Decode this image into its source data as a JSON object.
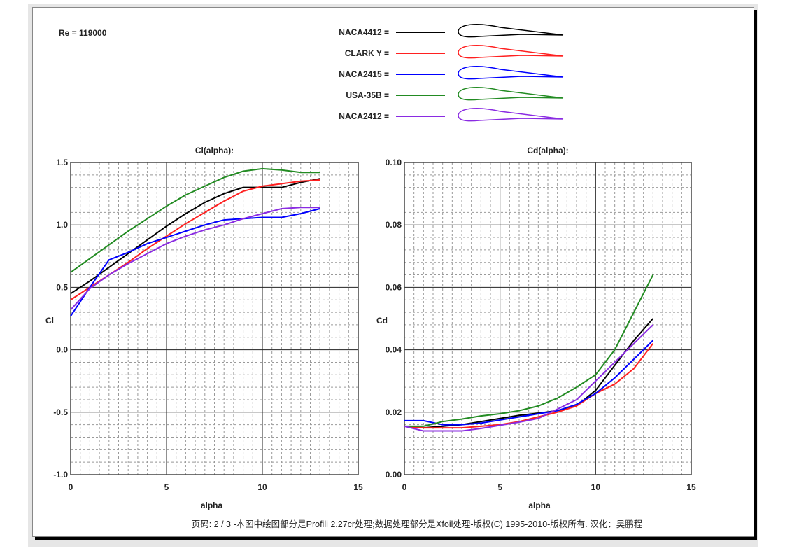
{
  "re_label": "Re = 119000",
  "footer": "页码: 2 / 3 -本图中绘图部分是Profili 2.27cr处理;数据处理部分是Xfoil处理-版权(C) 1995-2010-版权所有. 汉化：吴鹏程",
  "chart_data": [
    {
      "type": "line",
      "title": "Cl(alpha):",
      "xlabel": "alpha",
      "ylabel": "Cl",
      "xlim": [
        0,
        15
      ],
      "ylim": [
        -1.0,
        1.5
      ],
      "xticks": [
        "0",
        "5",
        "10",
        "15"
      ],
      "yticks": [
        "-1.0",
        "-0.5",
        "0.0",
        "0.5",
        "1.0",
        "1.5"
      ],
      "grid": true,
      "x": [
        0,
        1,
        2,
        3,
        4,
        5,
        6,
        7,
        8,
        9,
        10,
        11,
        12,
        13
      ],
      "series": [
        {
          "name": "NACA4412",
          "color": "#000000",
          "values": [
            0.45,
            0.55,
            0.66,
            0.77,
            0.88,
            0.99,
            1.09,
            1.18,
            1.25,
            1.3,
            1.3,
            1.3,
            1.34,
            1.37
          ]
        },
        {
          "name": "CLARK Y",
          "color": "#ff2020",
          "values": [
            0.4,
            0.5,
            0.6,
            0.7,
            0.81,
            0.91,
            1.01,
            1.1,
            1.19,
            1.27,
            1.31,
            1.33,
            1.35,
            1.36
          ]
        },
        {
          "name": "NACA2415",
          "color": "#0000ff",
          "values": [
            0.27,
            0.5,
            0.72,
            0.78,
            0.85,
            0.9,
            0.95,
            1.0,
            1.04,
            1.05,
            1.06,
            1.06,
            1.09,
            1.13
          ]
        },
        {
          "name": "USA-35B",
          "color": "#228b22",
          "values": [
            0.62,
            0.73,
            0.84,
            0.95,
            1.05,
            1.15,
            1.24,
            1.31,
            1.38,
            1.43,
            1.45,
            1.44,
            1.42,
            1.42
          ]
        },
        {
          "name": "NACA2412",
          "color": "#8a2be2",
          "values": [
            0.32,
            0.49,
            0.6,
            0.69,
            0.77,
            0.85,
            0.91,
            0.96,
            1.0,
            1.05,
            1.09,
            1.13,
            1.14,
            1.14
          ]
        }
      ]
    },
    {
      "type": "line",
      "title": "Cd(alpha):",
      "xlabel": "alpha",
      "ylabel": "Cd",
      "xlim": [
        0,
        15
      ],
      "ylim": [
        0,
        0.1
      ],
      "xticks": [
        "0",
        "5",
        "10",
        "15"
      ],
      "yticks": [
        "0.00",
        "0.02",
        "0.04",
        "0.06",
        "0.08",
        "0.10"
      ],
      "grid": true,
      "x": [
        0,
        1,
        2,
        3,
        4,
        5,
        6,
        7,
        8,
        9,
        10,
        11,
        12,
        13
      ],
      "series": [
        {
          "name": "NACA4412",
          "color": "#000000",
          "values": [
            0.0155,
            0.015,
            0.0155,
            0.016,
            0.017,
            0.018,
            0.019,
            0.0197,
            0.0205,
            0.022,
            0.027,
            0.035,
            0.043,
            0.05
          ]
        },
        {
          "name": "CLARK Y",
          "color": "#ff2020",
          "values": [
            0.0155,
            0.015,
            0.015,
            0.015,
            0.0155,
            0.016,
            0.017,
            0.0185,
            0.02,
            0.022,
            0.026,
            0.029,
            0.034,
            0.042
          ]
        },
        {
          "name": "NACA2415",
          "color": "#0000ff",
          "values": [
            0.0173,
            0.0173,
            0.016,
            0.016,
            0.0165,
            0.0175,
            0.0185,
            0.0195,
            0.0205,
            0.0225,
            0.026,
            0.031,
            0.037,
            0.043
          ]
        },
        {
          "name": "USA-35B",
          "color": "#228b22",
          "values": [
            0.0155,
            0.0155,
            0.017,
            0.0178,
            0.0188,
            0.0195,
            0.0205,
            0.022,
            0.0245,
            0.028,
            0.032,
            0.04,
            0.052,
            0.064
          ]
        },
        {
          "name": "NACA2412",
          "color": "#8a2be2",
          "values": [
            0.0155,
            0.014,
            0.014,
            0.014,
            0.0148,
            0.0158,
            0.0168,
            0.018,
            0.021,
            0.024,
            0.03,
            0.036,
            0.042,
            0.048
          ]
        }
      ]
    }
  ]
}
